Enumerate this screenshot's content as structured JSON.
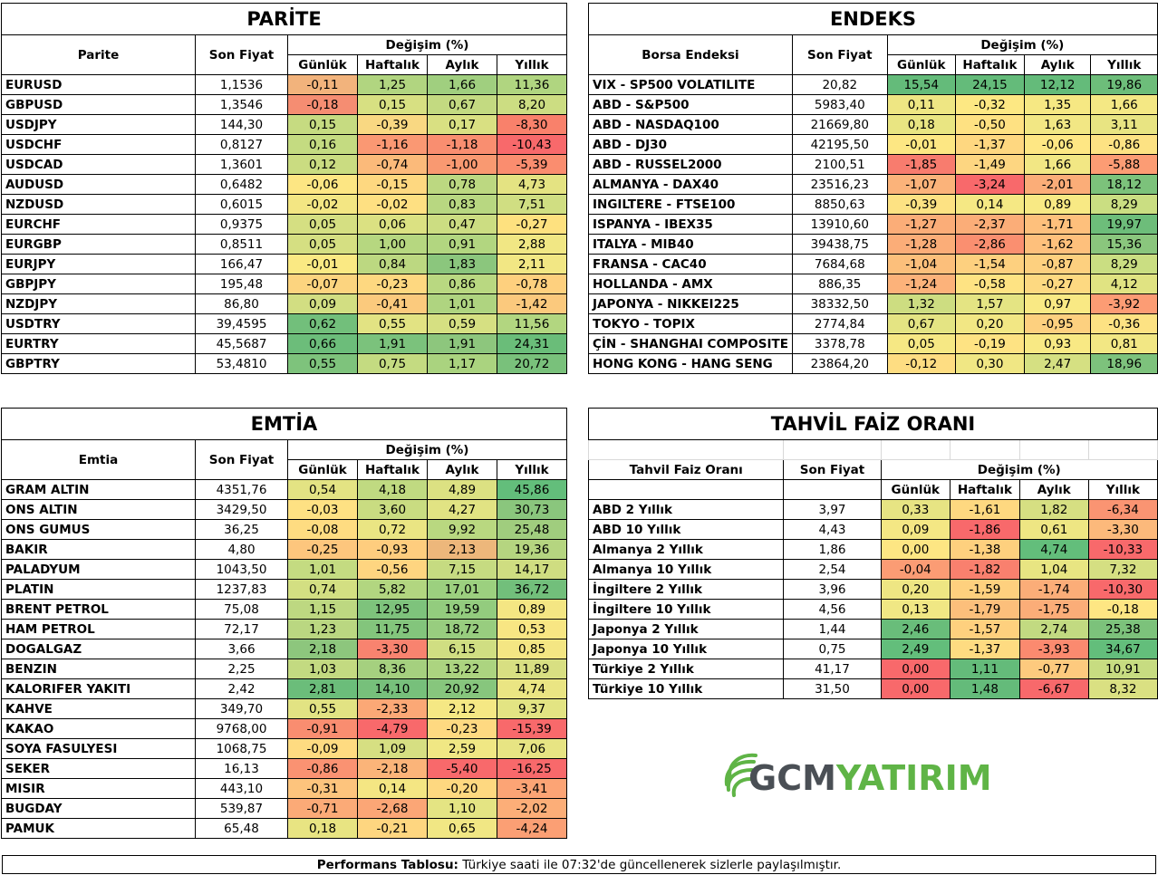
{
  "labels": {
    "son_fiyat": "Son Fiyat",
    "degisim": "Değişim (%)",
    "gunluk": "Günlük",
    "haftalik": "Haftalık",
    "aylik": "Aylık",
    "yillik": "Yıllık"
  },
  "parite": {
    "title": "PARİTE",
    "col_name": "Parite",
    "rows": [
      [
        "EURUSD",
        "1,1536",
        "-0,11",
        "1,25",
        "1,66",
        "11,36"
      ],
      [
        "GBPUSD",
        "1,3546",
        "-0,18",
        "0,15",
        "0,67",
        "8,20"
      ],
      [
        "USDJPY",
        "144,30",
        "0,15",
        "-0,39",
        "0,17",
        "-8,30"
      ],
      [
        "USDCHF",
        "0,8127",
        "0,16",
        "-1,16",
        "-1,18",
        "-10,43"
      ],
      [
        "USDCAD",
        "1,3601",
        "0,12",
        "-0,74",
        "-1,00",
        "-5,39"
      ],
      [
        "AUDUSD",
        "0,6482",
        "-0,06",
        "-0,15",
        "0,78",
        "4,73"
      ],
      [
        "NZDUSD",
        "0,6015",
        "-0,02",
        "-0,02",
        "0,83",
        "7,51"
      ],
      [
        "EURCHF",
        "0,9375",
        "0,05",
        "0,06",
        "0,47",
        "-0,27"
      ],
      [
        "EURGBP",
        "0,8511",
        "0,05",
        "1,00",
        "0,91",
        "2,88"
      ],
      [
        "EURJPY",
        "166,47",
        "-0,01",
        "0,84",
        "1,83",
        "2,11"
      ],
      [
        "GBPJPY",
        "195,48",
        "-0,07",
        "-0,23",
        "0,86",
        "-0,78"
      ],
      [
        "NZDJPY",
        "86,80",
        "0,09",
        "-0,41",
        "1,01",
        "-1,42"
      ],
      [
        "USDTRY",
        "39,4595",
        "0,62",
        "0,55",
        "0,59",
        "11,56"
      ],
      [
        "EURTRY",
        "45,5687",
        "0,66",
        "1,91",
        "1,91",
        "24,31"
      ],
      [
        "GBPTRY",
        "53,4810",
        "0,55",
        "0,75",
        "1,17",
        "20,72"
      ]
    ],
    "colors": [
      [
        "#f2b37c",
        "#b1d580",
        "#a0cf7f",
        "#b0d580"
      ],
      [
        "#f58d72",
        "#d7e082",
        "#c3da81",
        "#ccdd82"
      ],
      [
        "#c6db81",
        "#f9d882",
        "#d9e082",
        "#f9816b"
      ],
      [
        "#c4db81",
        "#fa9873",
        "#f98e70",
        "#f8696b"
      ],
      [
        "#cadc81",
        "#fbba7a",
        "#f99971",
        "#fa8d6f"
      ],
      [
        "#fde683",
        "#fed880",
        "#bcd881",
        "#e4e382"
      ],
      [
        "#f3e683",
        "#fee082",
        "#b8d781",
        "#d0de82"
      ],
      [
        "#d5df82",
        "#dbe182",
        "#ccdd82",
        "#fee17f"
      ],
      [
        "#d5df82",
        "#b6d780",
        "#b2d680",
        "#f1e784"
      ],
      [
        "#fae983",
        "#bcd881",
        "#8bc67d",
        "#f2e784"
      ],
      [
        "#fcd47f",
        "#fed880",
        "#b9d881",
        "#fed07e"
      ],
      [
        "#d2de82",
        "#fbca7d",
        "#afd480",
        "#fbc97d"
      ],
      [
        "#72bf7b",
        "#e2e383",
        "#d6e082",
        "#b2d680"
      ],
      [
        "#6cbd7a",
        "#7bc27c",
        "#8dc67d",
        "#6abd79"
      ],
      [
        "#7ec37c",
        "#c4db81",
        "#aad37f",
        "#79c17b"
      ]
    ]
  },
  "endeks": {
    "title": "ENDEKS",
    "col_name": "Borsa Endeksi",
    "rows": [
      [
        "VIX  - SP500 VOLATILITE",
        "20,82",
        "15,54",
        "24,15",
        "12,12",
        "19,86"
      ],
      [
        "ABD - S&P500",
        "5983,40",
        "0,11",
        "-0,32",
        "1,35",
        "1,66"
      ],
      [
        "ABD - NASDAQ100",
        "21669,80",
        "0,18",
        "-0,50",
        "1,63",
        "3,11"
      ],
      [
        "ABD - DJ30",
        "42195,50",
        "-0,01",
        "-1,37",
        "-0,06",
        "-0,86"
      ],
      [
        "ABD - RUSSEL2000",
        "2100,51",
        "-1,85",
        "-1,49",
        "1,66",
        "-5,88"
      ],
      [
        "ALMANYA - DAX40",
        "23516,23",
        "-1,07",
        "-3,24",
        "-2,01",
        "18,12"
      ],
      [
        "INGILTERE - FTSE100",
        "8850,63",
        "-0,39",
        "0,14",
        "0,89",
        "8,29"
      ],
      [
        "ISPANYA - IBEX35",
        "13910,60",
        "-1,27",
        "-2,37",
        "-1,71",
        "19,97"
      ],
      [
        "ITALYA - MIB40",
        "39438,75",
        "-1,28",
        "-2,86",
        "-1,62",
        "15,36"
      ],
      [
        "FRANSA - CAC40",
        "7684,68",
        "-1,04",
        "-1,54",
        "-0,87",
        "8,29"
      ],
      [
        "HOLLANDA - AMX",
        "886,35",
        "-1,24",
        "-0,58",
        "-0,27",
        "4,12"
      ],
      [
        "JAPONYA - NIKKEI225",
        "38332,50",
        "1,32",
        "1,57",
        "0,97",
        "-3,92"
      ],
      [
        "TOKYO - TOPIX",
        "2774,84",
        "0,67",
        "0,20",
        "-0,95",
        "-0,36"
      ],
      [
        "ÇİN - SHANGHAI COMPOSITE",
        "3378,78",
        "0,05",
        "-0,19",
        "0,93",
        "0,81"
      ],
      [
        "HONG KONG - HANG SENG",
        "23864,20",
        "-0,12",
        "0,30",
        "2,47",
        "18,96"
      ]
    ],
    "colors": [
      [
        "#64bb7a",
        "#64bb7a",
        "#64bb7a",
        "#6dbd7a"
      ],
      [
        "#eee683",
        "#fde883",
        "#f6e883",
        "#f4e884"
      ],
      [
        "#e9e582",
        "#fee182",
        "#f2e784",
        "#e8e482"
      ],
      [
        "#fde783",
        "#fed780",
        "#fee784",
        "#fde283"
      ],
      [
        "#f87c6e",
        "#fdd681",
        "#f2e784",
        "#fc9c74"
      ],
      [
        "#fbb37a",
        "#f8696b",
        "#fbad78",
        "#7cc27b"
      ],
      [
        "#fde283",
        "#f5e884",
        "#f8e984",
        "#cade82"
      ],
      [
        "#fbad78",
        "#fbad78",
        "#fec07c",
        "#6dbd7a"
      ],
      [
        "#fbad78",
        "#fa8f70",
        "#fec07c",
        "#8ac67d"
      ],
      [
        "#fcbf7b",
        "#fdd07f",
        "#fdd07f",
        "#cade82"
      ],
      [
        "#fcb27a",
        "#fee383",
        "#fdd981",
        "#e0e382"
      ],
      [
        "#cddd81",
        "#e4e483",
        "#f9e984",
        "#fc9c74"
      ],
      [
        "#e4e483",
        "#f2e784",
        "#fdd07f",
        "#fde283"
      ],
      [
        "#f6e884",
        "#fee383",
        "#f8e984",
        "#f2e784"
      ],
      [
        "#fedd82",
        "#f0e784",
        "#d5e082",
        "#7dc27c"
      ]
    ]
  },
  "emtia": {
    "title": "EMTİA",
    "col_name": "Emtia",
    "rows": [
      [
        "GRAM ALTIN",
        "4351,76",
        "0,54",
        "4,18",
        "4,89",
        "45,86"
      ],
      [
        "ONS ALTIN",
        "3429,50",
        "-0,03",
        "3,60",
        "4,27",
        "30,73"
      ],
      [
        "ONS GUMUS",
        "36,25",
        "-0,08",
        "0,72",
        "9,92",
        "25,48"
      ],
      [
        "BAKIR",
        "4,80",
        "-0,25",
        "-0,93",
        "2,13",
        "19,36"
      ],
      [
        "PALADYUM",
        "1043,50",
        "1,01",
        "-0,56",
        "7,15",
        "14,17"
      ],
      [
        "PLATIN",
        "1237,83",
        "0,74",
        "5,82",
        "17,01",
        "36,72"
      ],
      [
        "BRENT PETROL",
        "75,08",
        "1,15",
        "12,95",
        "19,59",
        "0,89"
      ],
      [
        "HAM PETROL",
        "72,17",
        "1,23",
        "11,75",
        "18,72",
        "0,53"
      ],
      [
        "DOGALGAZ",
        "3,66",
        "2,18",
        "-3,30",
        "6,15",
        "0,85"
      ],
      [
        "BENZIN",
        "2,25",
        "1,03",
        "8,36",
        "13,22",
        "11,89"
      ],
      [
        "KALORIFER YAKITI",
        "2,42",
        "2,81",
        "14,10",
        "20,92",
        "4,74"
      ],
      [
        "KAHVE",
        "349,70",
        "0,55",
        "-2,33",
        "2,12",
        "9,37"
      ],
      [
        "KAKAO",
        "9768,00",
        "-0,91",
        "-4,79",
        "-0,23",
        "-15,39"
      ],
      [
        "SOYA FASULYESI",
        "1068,75",
        "-0,09",
        "1,09",
        "2,59",
        "7,06"
      ],
      [
        "SEKER",
        "16,13",
        "-0,86",
        "-2,18",
        "-5,40",
        "-16,25"
      ],
      [
        "MISIR",
        "443,10",
        "-0,31",
        "0,14",
        "-0,20",
        "-3,41"
      ],
      [
        "BUGDAY",
        "539,87",
        "-0,71",
        "-2,68",
        "1,10",
        "-2,02"
      ],
      [
        "PAMUK",
        "65,48",
        "0,18",
        "-0,21",
        "0,65",
        "-4,24"
      ]
    ],
    "colors": [
      [
        "#e3e383",
        "#c0da81",
        "#dce182",
        "#63be7b"
      ],
      [
        "#fee183",
        "#c9dc81",
        "#e1e383",
        "#8ac67d"
      ],
      [
        "#fedc81",
        "#eae583",
        "#b9d880",
        "#a0cd7e"
      ],
      [
        "#fdc67d",
        "#fecd7e",
        "#edb77b",
        "#b5d580"
      ],
      [
        "#c4db81",
        "#fed580",
        "#c6db81",
        "#cfdd81"
      ],
      [
        "#d3df82",
        "#b2d680",
        "#9cd07f",
        "#72bf7b"
      ],
      [
        "#bdd881",
        "#7ec37c",
        "#93cc7e",
        "#f4e683"
      ],
      [
        "#bad781",
        "#83c57c",
        "#98cd7f",
        "#f8e683"
      ],
      [
        "#8dc67d",
        "#f8836f",
        "#d0de82",
        "#f4e683"
      ],
      [
        "#c3da81",
        "#a5d07f",
        "#acd480",
        "#d8df82"
      ],
      [
        "#6bbd7a",
        "#77c07b",
        "#87c67d",
        "#eae583"
      ],
      [
        "#e2e383",
        "#fba876",
        "#f5e884",
        "#e3e483"
      ],
      [
        "#f98d70",
        "#f8696b",
        "#fed981",
        "#f8696b"
      ],
      [
        "#fedb81",
        "#d6df82",
        "#f0e784",
        "#e7e483"
      ],
      [
        "#fa9272",
        "#fbb479",
        "#f8696b",
        "#f8696b"
      ],
      [
        "#fdc47d",
        "#f4e683",
        "#fed880",
        "#fca475"
      ],
      [
        "#fbaa77",
        "#fba676",
        "#e4e483",
        "#fcae78"
      ],
      [
        "#e8e482",
        "#fed680",
        "#f1e784",
        "#fb9f74"
      ]
    ]
  },
  "tahvil": {
    "title": "TAHVİL FAİZ ORANI",
    "col_name": "Tahvil Faiz Oranı",
    "rows": [
      [
        "ABD 2 Yıllık",
        "3,97",
        "0,33",
        "-1,61",
        "1,82",
        "-6,34"
      ],
      [
        "ABD 10 Yıllık",
        "4,43",
        "0,09",
        "-1,86",
        "0,61",
        "-3,30"
      ],
      [
        "Almanya 2 Yıllık",
        "1,86",
        "0,00",
        "-1,38",
        "4,74",
        "-10,33"
      ],
      [
        "Almanya 10 Yıllık",
        "2,54",
        "-0,04",
        "-1,82",
        "1,04",
        "7,32"
      ],
      [
        "İngiltere 2 Yıllık",
        "3,96",
        "0,20",
        "-1,59",
        "-1,74",
        "-10,30"
      ],
      [
        "İngiltere 10 Yıllık",
        "4,56",
        "0,13",
        "-1,79",
        "-1,75",
        "-0,18"
      ],
      [
        "Japonya 2 Yıllık",
        "1,44",
        "2,46",
        "-1,57",
        "2,74",
        "25,38"
      ],
      [
        "Japonya 10 Yıllık",
        "0,75",
        "2,49",
        "-1,37",
        "-3,93",
        "34,67"
      ],
      [
        "Türkiye 2 Yıllık",
        "41,17",
        "0,00",
        "1,11",
        "-0,77",
        "10,91"
      ],
      [
        "Türkiye 10 Yıllık",
        "31,50",
        "0,00",
        "1,48",
        "-6,67",
        "8,32"
      ]
    ],
    "colors": [
      [
        "#e7e483",
        "#fed880",
        "#d6df82",
        "#fa9472"
      ],
      [
        "#f4e784",
        "#f8696b",
        "#eee683",
        "#fcb97b"
      ],
      [
        "#fde683",
        "#fed07e",
        "#63be7b",
        "#f8696b"
      ],
      [
        "#fb9c74",
        "#f9806e",
        "#e8e582",
        "#d5df82"
      ],
      [
        "#eee683",
        "#fed07e",
        "#fbad78",
        "#f8696b"
      ],
      [
        "#f0e784",
        "#fcbf7b",
        "#fbad78",
        "#fee683"
      ],
      [
        "#69bd7a",
        "#fed07e",
        "#c2da81",
        "#7cc27b"
      ],
      [
        "#63be7b",
        "#fedb81",
        "#fb8a6f",
        "#63be7b"
      ],
      [
        "#f8696b",
        "#64bb7a",
        "#fdca7e",
        "#c7dc81"
      ],
      [
        "#f8696b",
        "#64bb7a",
        "#f8696b",
        "#dae082"
      ]
    ]
  },
  "footer": {
    "bold": "Performans Tablosu:",
    "text": " Türkiye saati ile 07:32'de güncellenerek sizlerle paylaşılmıştır."
  },
  "logo": {
    "text_dark": "GCM",
    "text_green": "YATIRIM",
    "color_dark": "#4a4f55",
    "color_green": "#5fb446"
  }
}
